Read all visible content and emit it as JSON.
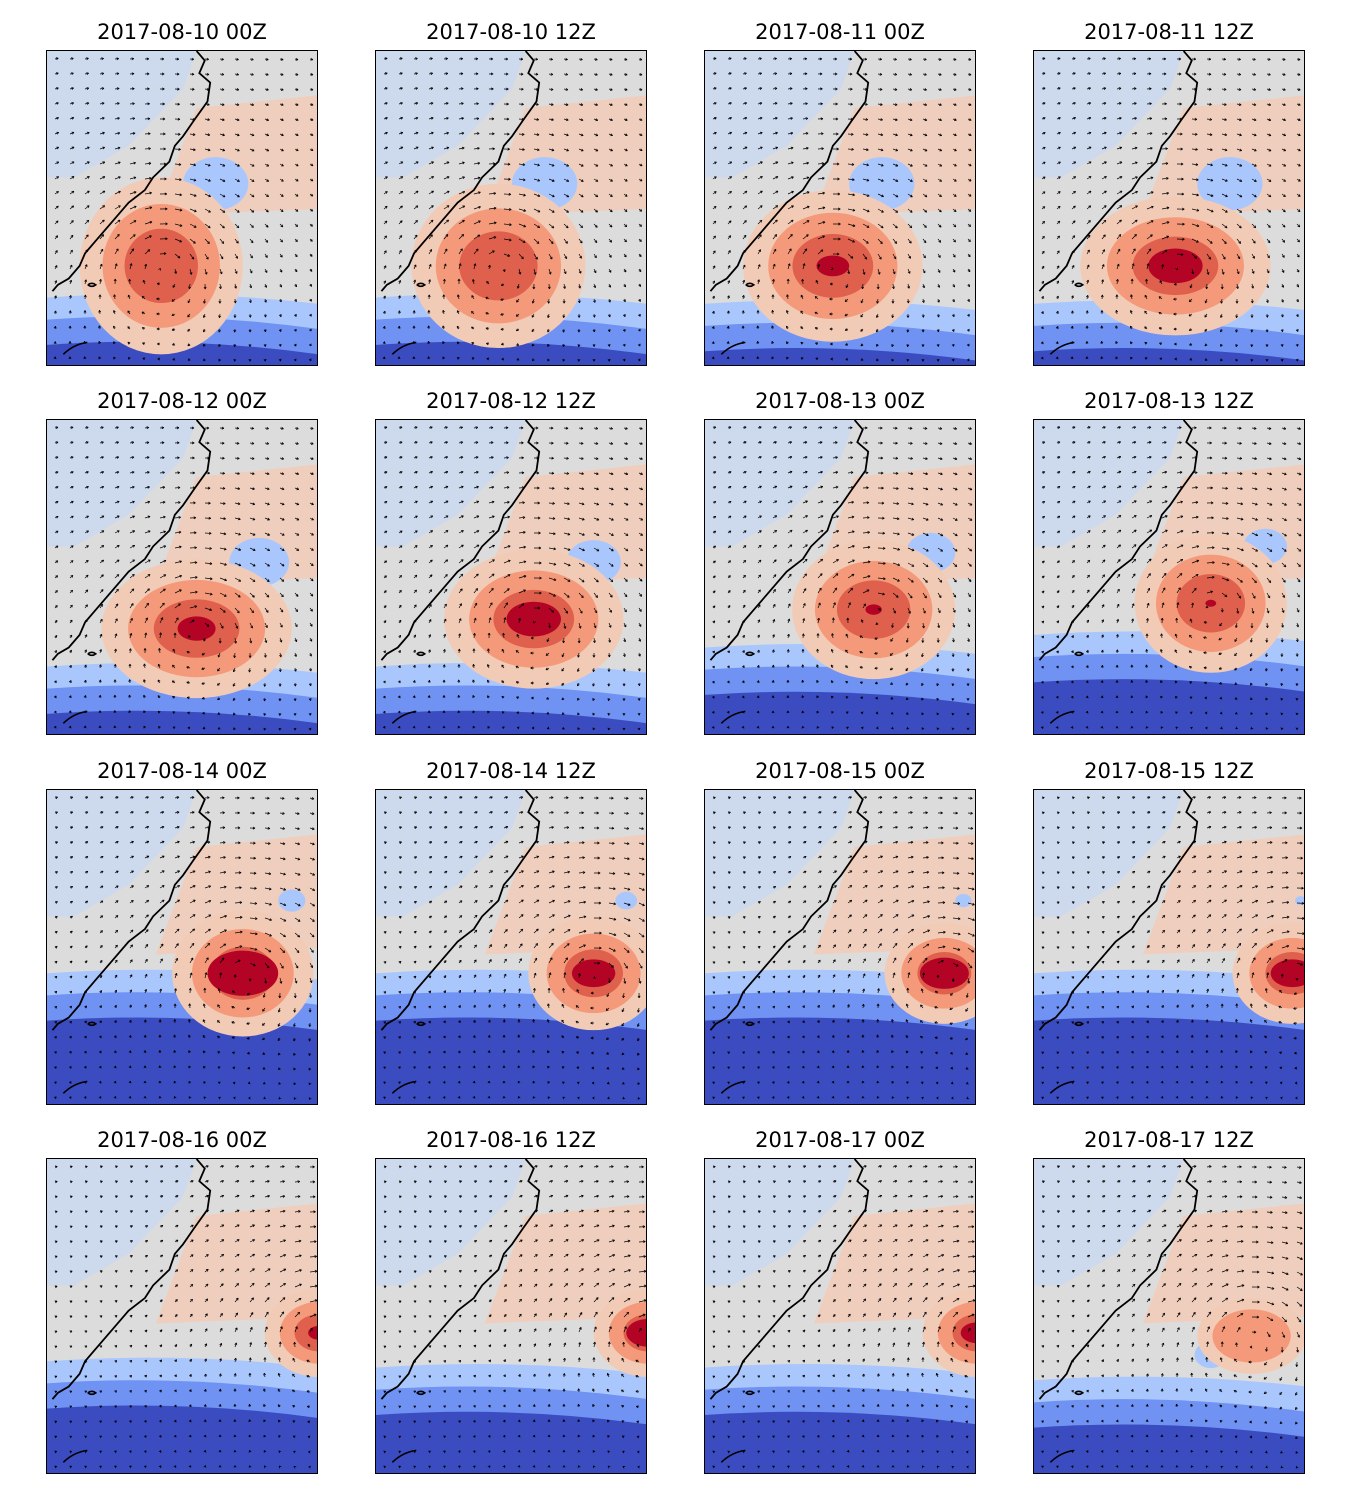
{
  "colors": {
    "deep_blue": "#3b4cc0",
    "blue": "#6f92f3",
    "light_blue": "#aac7fd",
    "pale_blue": "#cdd9ec",
    "neutral": "#dddcdc",
    "pale_red": "#f2cbb7",
    "salmon": "#f49a7b",
    "red": "#de604d",
    "dark_red": "#b40426",
    "coast": "#000000",
    "arrows": "#000000"
  },
  "panels": [
    {
      "title": "2017-08-10 00Z"
    },
    {
      "title": "2017-08-10 12Z"
    },
    {
      "title": "2017-08-11 00Z"
    },
    {
      "title": "2017-08-11 12Z"
    },
    {
      "title": "2017-08-12 00Z"
    },
    {
      "title": "2017-08-12 12Z"
    },
    {
      "title": "2017-08-13 00Z"
    },
    {
      "title": "2017-08-13 12Z"
    },
    {
      "title": "2017-08-14 00Z"
    },
    {
      "title": "2017-08-14 12Z"
    },
    {
      "title": "2017-08-15 00Z"
    },
    {
      "title": "2017-08-15 12Z"
    },
    {
      "title": "2017-08-16 00Z"
    },
    {
      "title": "2017-08-16 12Z"
    },
    {
      "title": "2017-08-17 00Z"
    },
    {
      "title": "2017-08-17 12Z"
    }
  ]
}
